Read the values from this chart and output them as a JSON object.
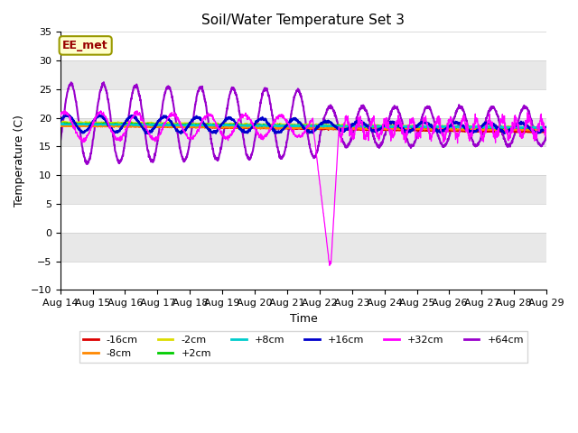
{
  "title": "Soil/Water Temperature Set 3",
  "xlabel": "Time",
  "ylabel": "Temperature (C)",
  "ylim": [
    -10,
    35
  ],
  "x_tick_labels": [
    "Aug 14",
    "Aug 15",
    "Aug 16",
    "Aug 17",
    "Aug 18",
    "Aug 19",
    "Aug 20",
    "Aug 21",
    "Aug 22",
    "Aug 23",
    "Aug 24",
    "Aug 25",
    "Aug 26",
    "Aug 27",
    "Aug 28",
    "Aug 29"
  ],
  "annotation_text": "EE_met",
  "series_colors": {
    "-16cm": "#dd0000",
    "-8cm": "#ff8800",
    "-2cm": "#dddd00",
    "+2cm": "#00cc00",
    "+8cm": "#00cccc",
    "+16cm": "#0000cc",
    "+32cm": "#ff00ff",
    "+64cm": "#9900cc"
  },
  "band_colors_light": "#e8e8e8",
  "band_colors_dark": "#d0d0d0",
  "fig_facecolor": "#ffffff",
  "ax_facecolor": "#ffffff"
}
